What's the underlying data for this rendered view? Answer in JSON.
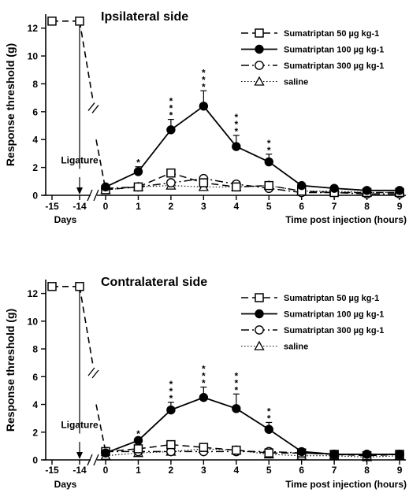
{
  "chart_data": [
    {
      "type": "line",
      "title": "Ipsilateral side",
      "ylabel": "Response threshold (g)",
      "xlabel": "Time post injection (hours)",
      "xlabel_days": "Days",
      "annotation": "Ligature",
      "ylim": [
        0,
        13
      ],
      "yticks": [
        0,
        2,
        4,
        6,
        8,
        10,
        12
      ],
      "xticks_days": [
        "-15",
        "-14"
      ],
      "xticks_hours": [
        "0",
        "1",
        "2",
        "3",
        "4",
        "5",
        "6",
        "7",
        "8",
        "9"
      ],
      "baseline": {
        "series": "Sumatriptan 50 µg kg-1",
        "days": [
          -15,
          -14
        ],
        "values": [
          12.5,
          12.5
        ]
      },
      "legend": [
        "Sumatriptan 50 µg kg-1",
        "Sumatriptan 100 µg kg-1",
        "Sumatriptan 300 µg kg-1",
        "saline"
      ],
      "series": [
        {
          "name": "Sumatriptan 50 µg kg-1",
          "marker": "square-open",
          "line": "dashed",
          "x": [
            0,
            1,
            2,
            3,
            4,
            5,
            6,
            7,
            8,
            9
          ],
          "values": [
            0.4,
            0.6,
            1.6,
            0.9,
            0.6,
            0.7,
            0.3,
            0.2,
            0.2,
            0.2
          ]
        },
        {
          "name": "Sumatriptan 100 µg kg-1",
          "marker": "circle-filled",
          "line": "solid",
          "x": [
            0,
            1,
            2,
            3,
            4,
            5,
            6,
            7,
            8,
            9
          ],
          "values": [
            0.6,
            1.7,
            4.7,
            6.4,
            3.5,
            2.4,
            0.7,
            0.5,
            0.35,
            0.35
          ],
          "errors": [
            0.15,
            0.35,
            0.75,
            1.1,
            0.8,
            0.55,
            0.15,
            0.1,
            0.1,
            0.1
          ],
          "significance": [
            "",
            "*",
            "***",
            "***",
            "***",
            "**",
            "",
            "",
            "",
            ""
          ]
        },
        {
          "name": "Sumatriptan 300 µg kg-1",
          "marker": "circle-open",
          "line": "dashdot",
          "x": [
            0,
            1,
            2,
            3,
            4,
            5,
            6,
            7,
            8,
            9
          ],
          "values": [
            0.5,
            0.6,
            0.9,
            1.2,
            0.8,
            0.5,
            0.2,
            0.2,
            0.1,
            0.1
          ]
        },
        {
          "name": "saline",
          "marker": "triangle-open",
          "line": "dotted",
          "x": [
            0,
            1,
            2,
            3,
            4,
            5,
            6,
            7,
            8,
            9
          ],
          "values": [
            0.4,
            0.6,
            0.7,
            0.6,
            0.6,
            0.7,
            0.3,
            0.3,
            0.2,
            0.2
          ]
        }
      ]
    },
    {
      "type": "line",
      "title": "Contralateral side",
      "ylabel": "Response threshold (g)",
      "xlabel": "Time post injection (hours)",
      "xlabel_days": "Days",
      "annotation": "Ligature",
      "ylim": [
        0,
        13
      ],
      "yticks": [
        0,
        2,
        4,
        6,
        8,
        10,
        12
      ],
      "xticks_days": [
        "-15",
        "-14"
      ],
      "xticks_hours": [
        "0",
        "1",
        "2",
        "3",
        "4",
        "5",
        "6",
        "7",
        "8",
        "9"
      ],
      "baseline": {
        "series": "Sumatriptan 50 µg kg-1",
        "days": [
          -15,
          -14
        ],
        "values": [
          12.5,
          12.5
        ]
      },
      "legend": [
        "Sumatriptan 50 µg kg-1",
        "Sumatriptan 100 µg kg-1",
        "Sumatriptan 300 µg kg-1",
        "saline"
      ],
      "series": [
        {
          "name": "Sumatriptan 50 µg kg-1",
          "marker": "square-open",
          "line": "dashed",
          "x": [
            0,
            1,
            2,
            3,
            4,
            5,
            6,
            7,
            8,
            9
          ],
          "values": [
            0.6,
            0.8,
            1.1,
            0.9,
            0.7,
            0.5,
            0.5,
            0.4,
            0.3,
            0.4
          ]
        },
        {
          "name": "Sumatriptan 100 µg kg-1",
          "marker": "circle-filled",
          "line": "solid",
          "x": [
            0,
            1,
            2,
            3,
            4,
            5,
            6,
            7,
            8,
            9
          ],
          "values": [
            0.5,
            1.4,
            3.6,
            4.5,
            3.7,
            2.2,
            0.6,
            0.4,
            0.4,
            0.4
          ],
          "errors": [
            0.15,
            0.2,
            0.55,
            0.75,
            1.05,
            0.5,
            0.15,
            0.1,
            0.1,
            0.1
          ],
          "significance": [
            "",
            "*",
            "***",
            "***",
            "***",
            "**",
            "",
            "",
            "",
            ""
          ]
        },
        {
          "name": "Sumatriptan 300 µg kg-1",
          "marker": "circle-open",
          "line": "dashdot",
          "x": [
            0,
            1,
            2,
            3,
            4,
            5,
            6,
            7,
            8,
            9
          ],
          "values": [
            0.6,
            0.6,
            0.6,
            0.6,
            0.6,
            0.6,
            0.5,
            0.4,
            0.4,
            0.4
          ]
        },
        {
          "name": "saline",
          "marker": "triangle-open",
          "line": "dotted",
          "x": [
            0,
            1,
            2,
            3,
            4,
            5,
            6,
            7,
            8,
            9
          ],
          "values": [
            0.3,
            0.5,
            0.6,
            0.8,
            0.7,
            0.4,
            0.3,
            0.3,
            0.2,
            0.3
          ]
        }
      ]
    }
  ]
}
